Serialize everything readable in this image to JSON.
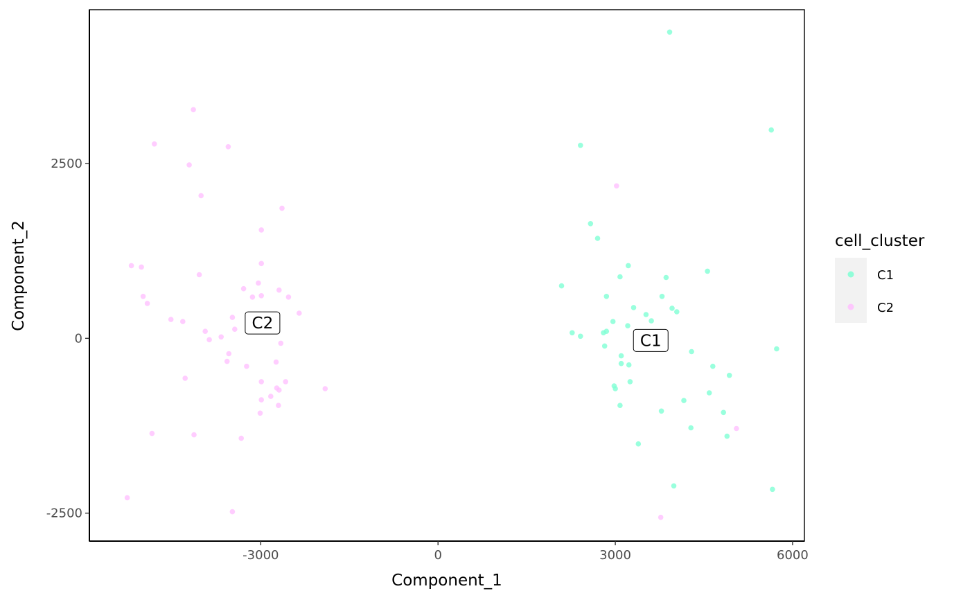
{
  "chart_data": {
    "type": "scatter",
    "title": "",
    "xlabel": "Component_1",
    "ylabel": "Component_2",
    "xlim": [
      -5900,
      6200
    ],
    "ylim": [
      -2900,
      4700
    ],
    "x_ticks": [
      -3000,
      0,
      3000,
      6000
    ],
    "x_tick_labels": [
      "-3000",
      "0",
      "3000",
      "6000"
    ],
    "y_ticks": [
      -2500,
      0,
      2500
    ],
    "y_tick_labels": [
      "-2500",
      "0",
      "2500"
    ],
    "grid": false,
    "legend": {
      "title": "cell_cluster",
      "position": "right"
    },
    "series": [
      {
        "name": "C1",
        "color": "#7FFFD4",
        "label": "C1",
        "label_at": [
          3600,
          -30
        ],
        "points": [
          [
            3920,
            4380
          ],
          [
            5640,
            2980
          ],
          [
            2410,
            2760
          ],
          [
            2580,
            1640
          ],
          [
            2700,
            1430
          ],
          [
            3220,
            1040
          ],
          [
            4560,
            960
          ],
          [
            2090,
            750
          ],
          [
            3080,
            880
          ],
          [
            3860,
            870
          ],
          [
            2850,
            600
          ],
          [
            3790,
            600
          ],
          [
            3310,
            440
          ],
          [
            3960,
            430
          ],
          [
            4040,
            380
          ],
          [
            3520,
            340
          ],
          [
            3610,
            250
          ],
          [
            2960,
            240
          ],
          [
            3210,
            180
          ],
          [
            2270,
            80
          ],
          [
            2410,
            30
          ],
          [
            2800,
            80
          ],
          [
            2850,
            100
          ],
          [
            2820,
            -110
          ],
          [
            4290,
            -190
          ],
          [
            5730,
            -150
          ],
          [
            3100,
            -250
          ],
          [
            3100,
            -360
          ],
          [
            3230,
            -380
          ],
          [
            4650,
            -400
          ],
          [
            4930,
            -530
          ],
          [
            3250,
            -620
          ],
          [
            2980,
            -680
          ],
          [
            3000,
            -720
          ],
          [
            4590,
            -780
          ],
          [
            3080,
            -960
          ],
          [
            4160,
            -890
          ],
          [
            3780,
            -1040
          ],
          [
            4830,
            -1060
          ],
          [
            4280,
            -1280
          ],
          [
            4890,
            -1400
          ],
          [
            3390,
            -1510
          ],
          [
            3990,
            -2110
          ],
          [
            5660,
            -2160
          ]
        ]
      },
      {
        "name": "C2",
        "color": "#FFC0FF",
        "label": "C2",
        "label_at": [
          -2970,
          220
        ],
        "points": [
          [
            -4140,
            3270
          ],
          [
            -4800,
            2780
          ],
          [
            -3550,
            2740
          ],
          [
            -4210,
            2480
          ],
          [
            -4010,
            2040
          ],
          [
            -2640,
            1860
          ],
          [
            -2990,
            1550
          ],
          [
            -2990,
            1070
          ],
          [
            -5190,
            1040
          ],
          [
            -5020,
            1020
          ],
          [
            -4040,
            910
          ],
          [
            -3040,
            790
          ],
          [
            -3290,
            710
          ],
          [
            -2690,
            690
          ],
          [
            -2990,
            610
          ],
          [
            -3140,
            590
          ],
          [
            -2530,
            590
          ],
          [
            -4990,
            600
          ],
          [
            -4920,
            500
          ],
          [
            -2350,
            360
          ],
          [
            -4520,
            270
          ],
          [
            -4320,
            240
          ],
          [
            -3480,
            300
          ],
          [
            -3440,
            130
          ],
          [
            -3940,
            100
          ],
          [
            -3870,
            -20
          ],
          [
            -3670,
            20
          ],
          [
            -2660,
            -70
          ],
          [
            -3540,
            -220
          ],
          [
            -3570,
            -330
          ],
          [
            -2740,
            -340
          ],
          [
            -3240,
            -400
          ],
          [
            -4280,
            -570
          ],
          [
            -2580,
            -620
          ],
          [
            -2990,
            -620
          ],
          [
            -2730,
            -710
          ],
          [
            -2690,
            -740
          ],
          [
            -1910,
            -720
          ],
          [
            -2990,
            -880
          ],
          [
            -2830,
            -830
          ],
          [
            -2700,
            -960
          ],
          [
            -3010,
            -1070
          ],
          [
            -4840,
            -1360
          ],
          [
            -4130,
            -1380
          ],
          [
            -3330,
            -1430
          ],
          [
            -5260,
            -2280
          ],
          [
            -3480,
            -2480
          ],
          [
            3770,
            -2560
          ],
          [
            3020,
            2180
          ],
          [
            5050,
            -1290
          ]
        ]
      }
    ]
  }
}
